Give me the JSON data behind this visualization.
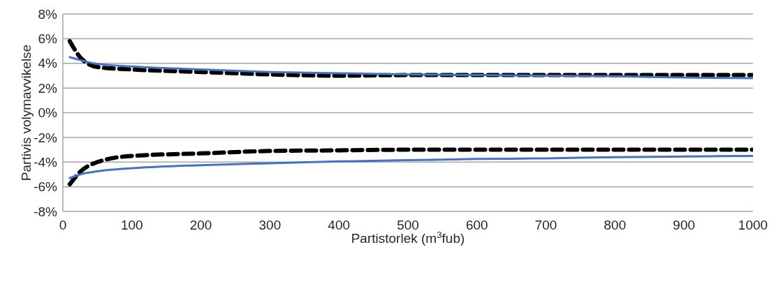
{
  "chart_data": {
    "type": "line",
    "xlabel": "Partistorlek (m$^{3}$fub)",
    "ylabel": "Partivis volymavvikelse",
    "xlim": [
      0,
      1000
    ],
    "xticks": [
      0,
      100,
      200,
      300,
      400,
      500,
      600,
      700,
      800,
      900,
      1000
    ],
    "ylim": [
      -8,
      8
    ],
    "yticks": [
      {
        "value": -8,
        "label": "-8%"
      },
      {
        "value": -6,
        "label": "-6%"
      },
      {
        "value": -4,
        "label": "-4%"
      },
      {
        "value": -2,
        "label": "-2%"
      },
      {
        "value": 0,
        "label": "0%"
      },
      {
        "value": 2,
        "label": "2%"
      },
      {
        "value": 4,
        "label": "4%"
      },
      {
        "value": 6,
        "label": "6%"
      },
      {
        "value": 8,
        "label": "8%"
      }
    ],
    "grid": "y",
    "marker": "none",
    "series": [
      {
        "color": "#000000",
        "line_style": "dashed",
        "x": [
          10,
          25,
          50,
          100,
          200,
          300,
          400,
          500,
          1000
        ],
        "values": [
          5.8,
          4.5,
          3.7,
          3.5,
          3.3,
          3.1,
          3.0,
          3.05,
          3.05
        ]
      },
      {
        "color": "#4472c4",
        "line_style": "solid",
        "x": [
          10,
          50,
          100,
          200,
          300,
          400,
          500,
          600,
          700,
          800,
          900,
          1000
        ],
        "values": [
          4.5,
          3.95,
          3.75,
          3.5,
          3.3,
          3.2,
          3.1,
          3.05,
          3.0,
          2.95,
          2.85,
          2.8
        ]
      },
      {
        "color": "#000000",
        "line_style": "dashed",
        "x": [
          10,
          25,
          50,
          100,
          200,
          300,
          400,
          500,
          1000
        ],
        "values": [
          -5.8,
          -4.8,
          -4.0,
          -3.5,
          -3.3,
          -3.1,
          -3.05,
          -3.0,
          -3.0
        ]
      },
      {
        "color": "#4472c4",
        "line_style": "solid",
        "x": [
          10,
          25,
          50,
          100,
          200,
          300,
          400,
          500,
          600,
          700,
          800,
          900,
          1000
        ],
        "values": [
          -5.3,
          -5.0,
          -4.75,
          -4.5,
          -4.25,
          -4.1,
          -3.95,
          -3.85,
          -3.75,
          -3.7,
          -3.6,
          -3.55,
          -3.5
        ]
      }
    ]
  }
}
